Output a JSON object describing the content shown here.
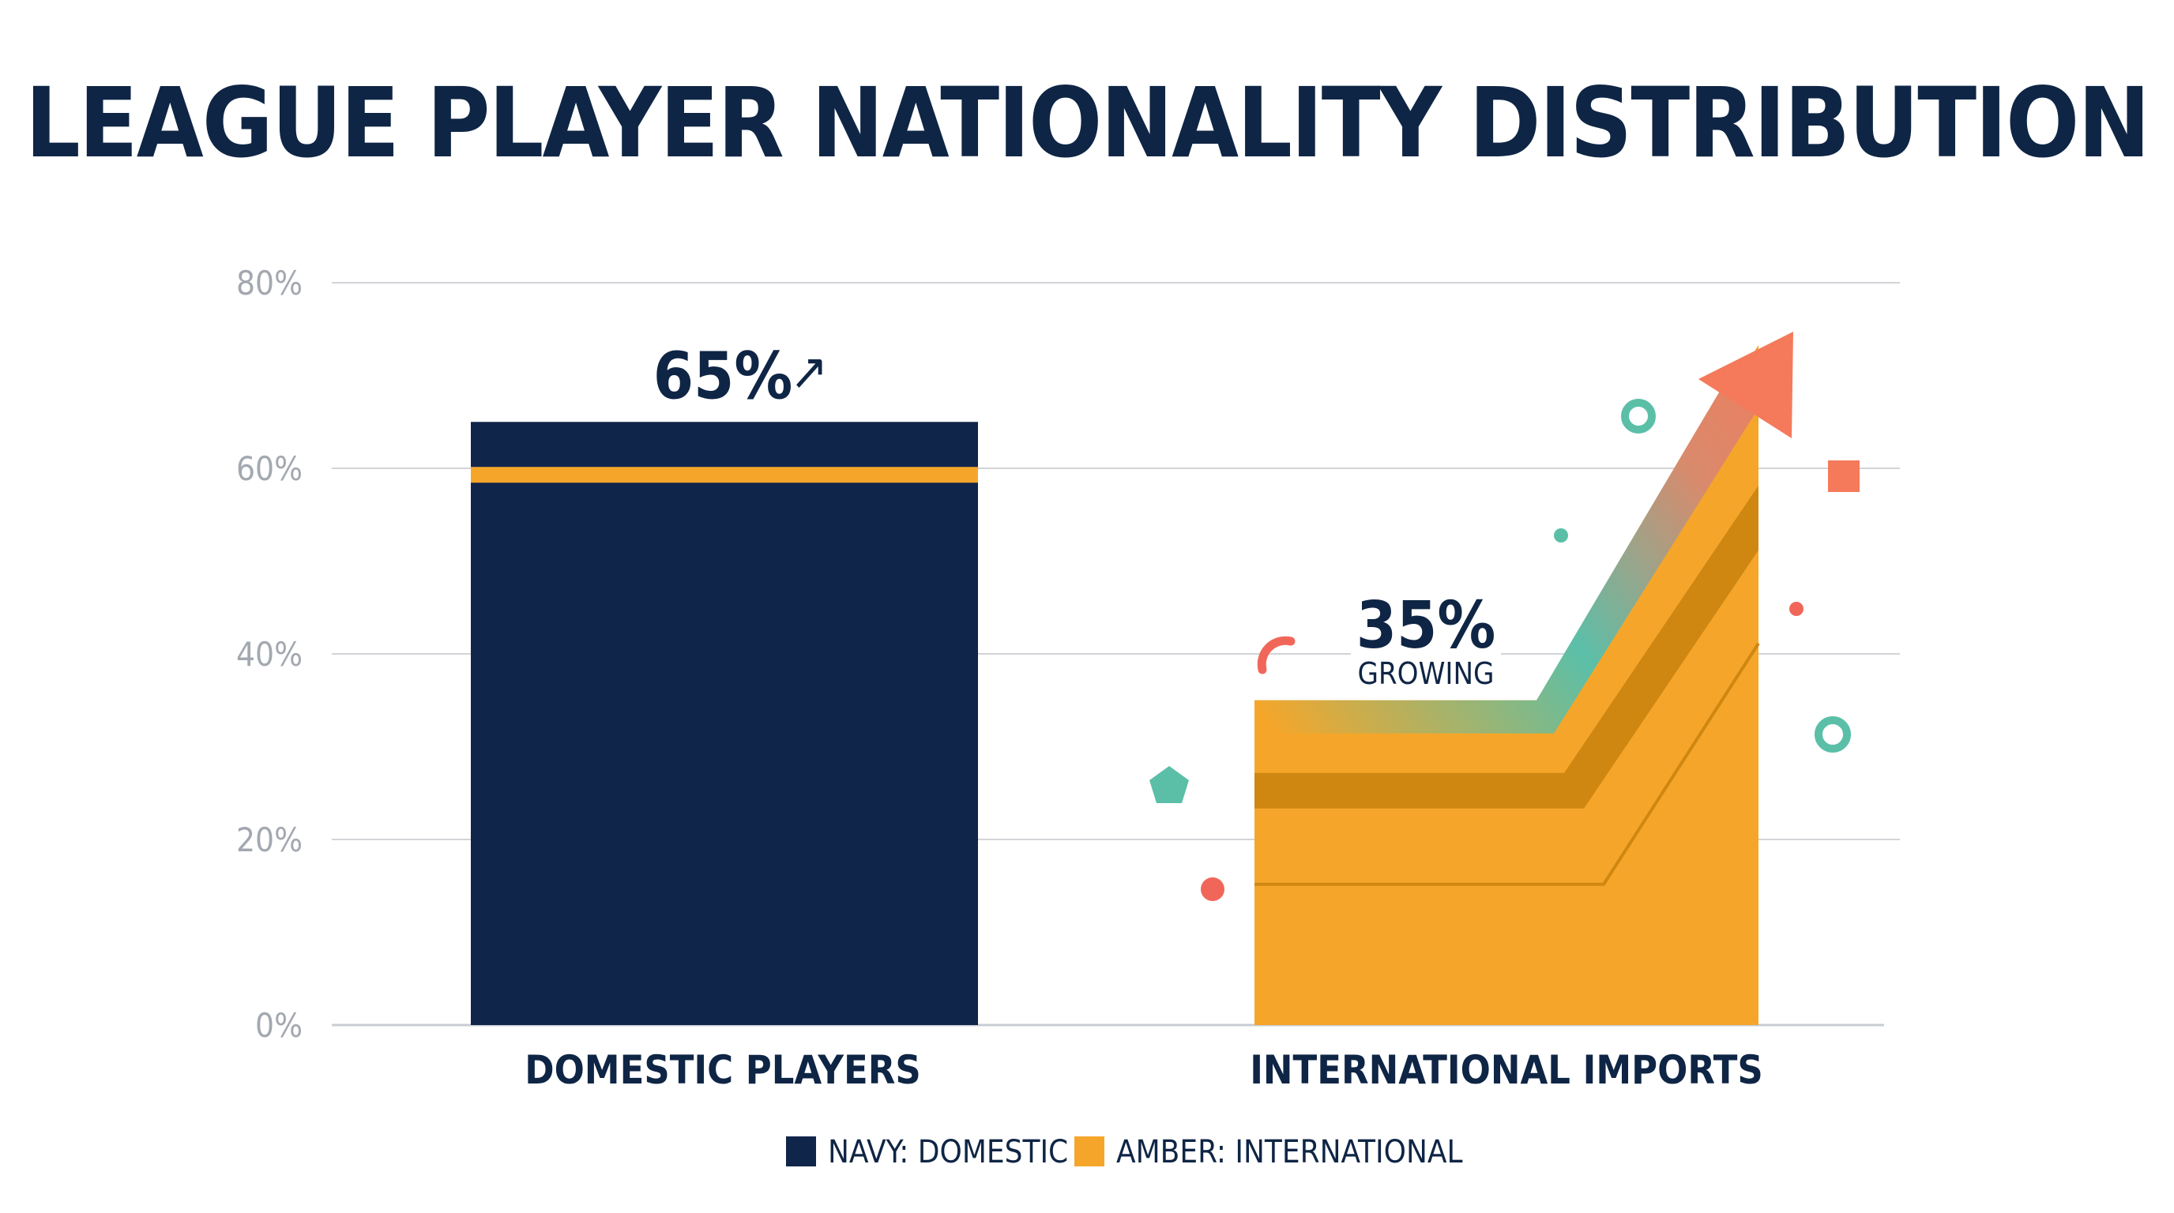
{
  "chart_data": {
    "type": "bar",
    "title": "LEAGUE PLAYER NATIONALITY DISTRIBUTION",
    "categories": [
      "DOMESTIC PLAYERS",
      "INTERNATIONAL IMPORTS"
    ],
    "values": [
      65,
      35
    ],
    "value_labels": [
      "65%",
      "35%"
    ],
    "annotations": [
      "↗",
      "GROWING"
    ],
    "ylim": [
      0,
      80
    ],
    "yticks": [
      0,
      20,
      40,
      60,
      80
    ],
    "ytick_labels": [
      "0%",
      "20%",
      "40%",
      "60%",
      "80%"
    ],
    "grid": true,
    "legend": {
      "placement": "bottom",
      "entries": [
        {
          "label": "NAVY: DOMESTIC",
          "color": "#10254a"
        },
        {
          "label": "AMBER: INTERNATIONAL",
          "color": "#f5a62a"
        }
      ]
    },
    "colors": {
      "domestic": "#10254a",
      "international": "#f5a62a",
      "stripe": "#f5a62a",
      "arrow": "#f57a5b",
      "teal": "#5bbfa8",
      "coral": "#f0675a"
    }
  }
}
